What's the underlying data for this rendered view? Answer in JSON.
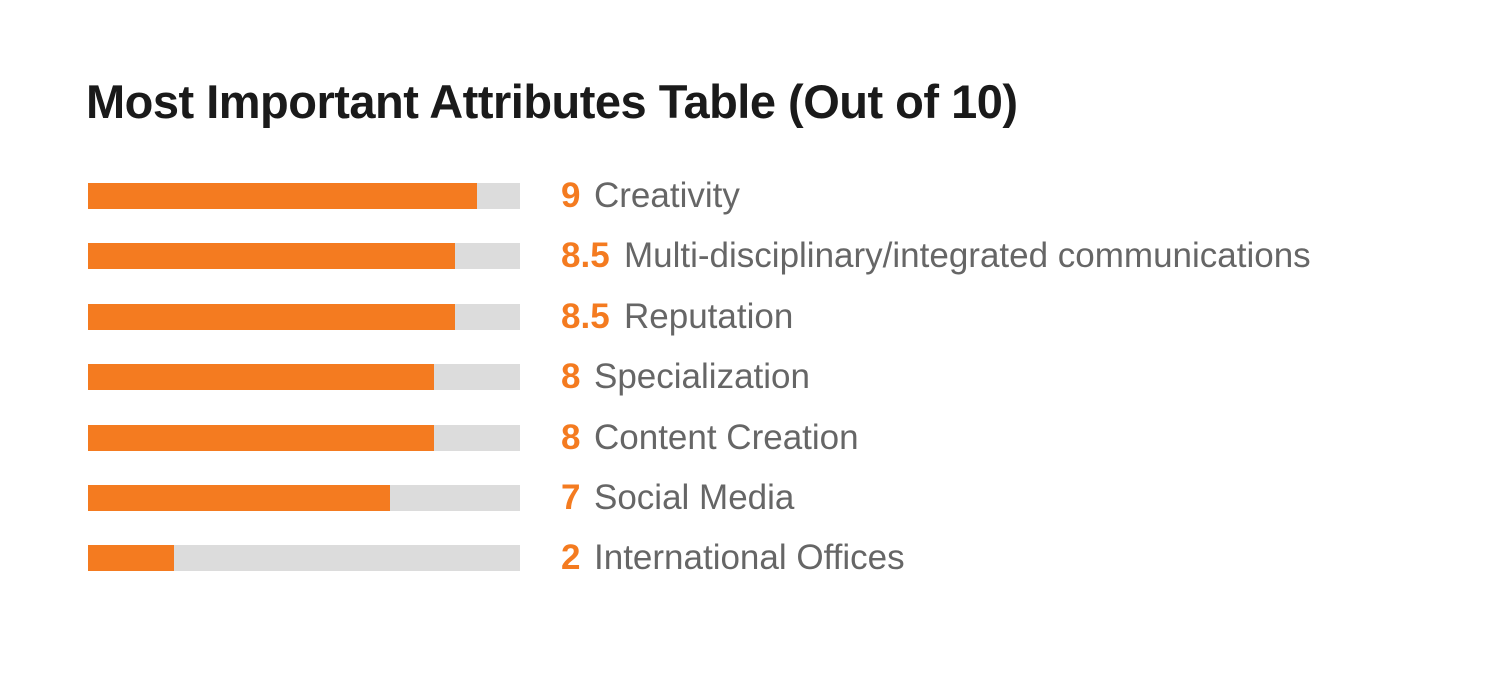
{
  "chart_data": {
    "type": "bar",
    "title": "Most Important Attributes Table (Out of 10)",
    "categories": [
      "Creativity",
      "Multi-disciplinary/integrated communications",
      "Reputation",
      "Specialization",
      "Content Creation",
      "Social Media",
      "International Offices"
    ],
    "values": [
      9,
      8.5,
      8.5,
      8,
      8,
      7,
      2
    ],
    "value_labels": [
      "9",
      "8.5",
      "8.5",
      "8",
      "8",
      "7",
      "2"
    ],
    "max": 10,
    "orientation": "horizontal",
    "grid": false,
    "legend": "none",
    "colors": {
      "fill": "#f47b20",
      "track": "#dcdcdc",
      "value_text": "#f47b20",
      "label_text": "#666666",
      "title_text": "#1a1a1a"
    }
  }
}
